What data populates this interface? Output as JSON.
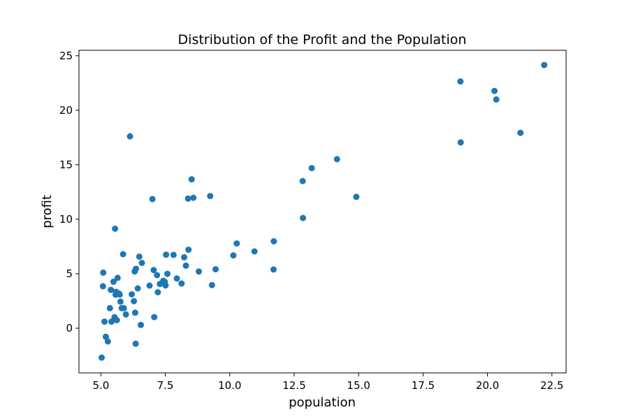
{
  "chart_data": {
    "type": "scatter",
    "title": "Distribution of the Profit and the Population",
    "xlabel": "population",
    "ylabel": "profit",
    "xlim": [
      4.15,
      23.05
    ],
    "ylim": [
      -4.1,
      25.5
    ],
    "xticks": [
      5.0,
      7.5,
      10.0,
      12.5,
      15.0,
      17.5,
      20.0,
      22.5
    ],
    "xtick_labels": [
      "5.0",
      "7.5",
      "10.0",
      "12.5",
      "15.0",
      "17.5",
      "20.0",
      "22.5"
    ],
    "yticks": [
      0,
      5,
      10,
      15,
      20,
      25
    ],
    "ytick_labels": [
      "0",
      "5",
      "10",
      "15",
      "20",
      "25"
    ],
    "grid": false,
    "color": "#1f77b4",
    "points": [
      [
        5.03,
        -2.7
      ],
      [
        5.19,
        -0.78
      ],
      [
        5.27,
        -1.22
      ],
      [
        5.35,
        1.84
      ],
      [
        5.08,
        3.85
      ],
      [
        5.09,
        5.1
      ],
      [
        5.14,
        0.6
      ],
      [
        5.39,
        3.52
      ],
      [
        5.41,
        0.6
      ],
      [
        5.49,
        4.26
      ],
      [
        5.53,
        1.01
      ],
      [
        5.57,
        3.08
      ],
      [
        5.59,
        3.34
      ],
      [
        5.65,
        4.62
      ],
      [
        5.62,
        0.74
      ],
      [
        5.7,
        3.18
      ],
      [
        5.73,
        3.09
      ],
      [
        5.76,
        2.44
      ],
      [
        5.81,
        1.84
      ],
      [
        5.89,
        1.84
      ],
      [
        5.86,
        6.79
      ],
      [
        5.97,
        1.26
      ],
      [
        5.55,
        9.13
      ],
      [
        6.13,
        17.6
      ],
      [
        6.2,
        3.11
      ],
      [
        6.28,
        2.48
      ],
      [
        6.33,
        1.42
      ],
      [
        6.31,
        5.21
      ],
      [
        6.36,
        5.45
      ],
      [
        6.35,
        -1.42
      ],
      [
        6.43,
        3.65
      ],
      [
        6.49,
        6.57
      ],
      [
        6.55,
        0.3
      ],
      [
        6.59,
        5.99
      ],
      [
        6.89,
        3.91
      ],
      [
        7.0,
        11.85
      ],
      [
        7.05,
        5.34
      ],
      [
        7.07,
        1.02
      ],
      [
        7.18,
        4.87
      ],
      [
        7.21,
        3.3
      ],
      [
        7.29,
        4.06
      ],
      [
        7.42,
        4.35
      ],
      [
        7.48,
        4.26
      ],
      [
        7.51,
        3.93
      ],
      [
        7.53,
        6.75
      ],
      [
        7.58,
        4.99
      ],
      [
        7.82,
        6.73
      ],
      [
        7.95,
        4.56
      ],
      [
        8.13,
        4.1
      ],
      [
        8.23,
        6.51
      ],
      [
        8.3,
        5.74
      ],
      [
        8.38,
        11.89
      ],
      [
        8.4,
        7.2
      ],
      [
        8.52,
        13.66
      ],
      [
        8.59,
        11.97
      ],
      [
        8.8,
        5.2
      ],
      [
        9.24,
        12.13
      ],
      [
        9.31,
        3.96
      ],
      [
        9.45,
        5.41
      ],
      [
        10.14,
        6.68
      ],
      [
        10.27,
        7.78
      ],
      [
        10.96,
        7.05
      ],
      [
        11.71,
        7.98
      ],
      [
        11.7,
        5.39
      ],
      [
        12.83,
        13.5
      ],
      [
        12.84,
        10.12
      ],
      [
        13.18,
        14.69
      ],
      [
        14.16,
        15.51
      ],
      [
        14.91,
        12.05
      ],
      [
        18.95,
        22.64
      ],
      [
        18.96,
        17.05
      ],
      [
        20.27,
        21.77
      ],
      [
        20.34,
        20.99
      ],
      [
        21.28,
        17.93
      ],
      [
        22.2,
        24.15
      ]
    ]
  }
}
